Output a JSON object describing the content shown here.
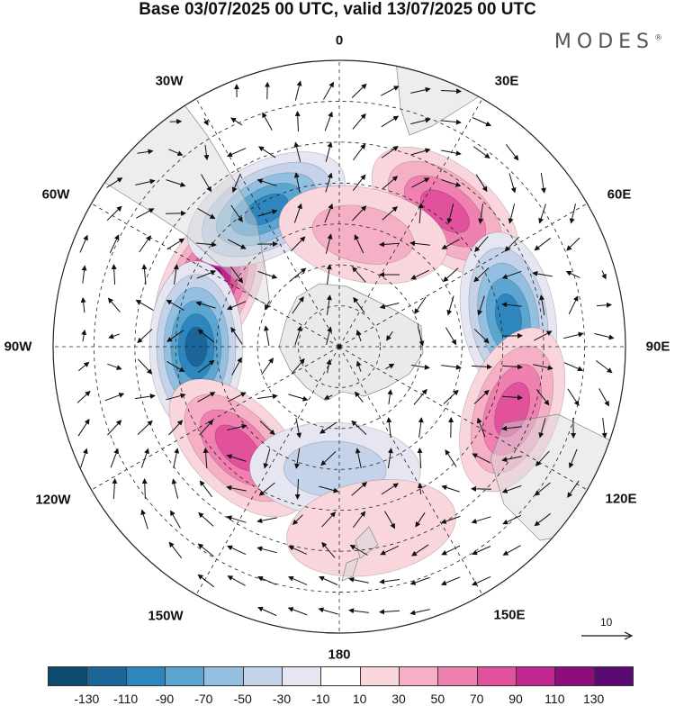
{
  "title": "Base 03/07/2025 00 UTC, valid 13/07/2025 00 UTC",
  "brand": "MODES",
  "brand_mark": "®",
  "map": {
    "projection": "south polar stereographic",
    "longitude_labels": [
      "0",
      "30E",
      "60E",
      "90E",
      "120E",
      "150E",
      "180",
      "150W",
      "120W",
      "90W",
      "60W",
      "30W"
    ],
    "field": "anomaly shading with wind vectors",
    "centers": [
      {
        "name": "high-60W-70W",
        "lon": -65,
        "lat": -55,
        "value": 125
      },
      {
        "name": "low-90W",
        "lon": -90,
        "lat": -55,
        "value": -125
      },
      {
        "name": "low-30W",
        "lon": -28,
        "lat": -52,
        "value": -100
      },
      {
        "name": "high-40E",
        "lon": 38,
        "lat": -48,
        "value": 80
      },
      {
        "name": "low-80E",
        "lon": 80,
        "lat": -48,
        "value": -100
      },
      {
        "name": "high-110E",
        "lon": 110,
        "lat": -45,
        "value": 95
      },
      {
        "name": "high-135W",
        "lon": -135,
        "lat": -55,
        "value": 95
      },
      {
        "name": "high-10E",
        "lon": 12,
        "lat": -62,
        "value": 45
      },
      {
        "name": "low-175W",
        "lon": -178,
        "lat": -60,
        "value": -45
      },
      {
        "name": "high-170E",
        "lon": 170,
        "lat": -45,
        "value": 35
      }
    ]
  },
  "vector_reference": {
    "label": "10"
  },
  "colorbar": {
    "labels": [
      "-130",
      "-110",
      "-90",
      "-70",
      "-50",
      "-30",
      "-10",
      "10",
      "30",
      "50",
      "70",
      "90",
      "110",
      "130"
    ],
    "colors": [
      "#0e4a6e",
      "#1a6699",
      "#2d86bd",
      "#5aa6d1",
      "#93bfe0",
      "#c4d3e9",
      "#e6e6f2",
      "#ffffff",
      "#f9d6dc",
      "#f5b0c5",
      "#ef80af",
      "#e1519c",
      "#c0268d",
      "#8e0d7a",
      "#5c0a73"
    ]
  }
}
